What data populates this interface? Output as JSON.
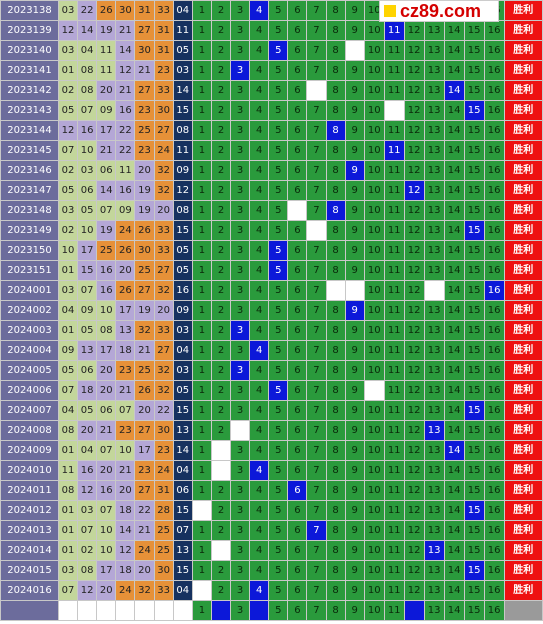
{
  "logo": {
    "text": "cz89.com",
    "icon": "yellow-square-icon"
  },
  "colors": {
    "green": "#c3d69b",
    "purple": "#b4a7d6",
    "orange": "#e69138",
    "blue_green": "#2a9a3c",
    "hit": "#0c18d9",
    "win": "#ee1111"
  },
  "win_label": "胜利",
  "rows": [
    {
      "p": "2023138",
      "r": [
        "03",
        "22",
        "26",
        "30",
        "31",
        "33"
      ],
      "s": "04",
      "b": "4"
    },
    {
      "p": "2023139",
      "r": [
        "12",
        "14",
        "19",
        "21",
        "27",
        "31"
      ],
      "s": "11",
      "b": "11"
    },
    {
      "p": "2023140",
      "r": [
        "03",
        "04",
        "11",
        "14",
        "30",
        "31"
      ],
      "s": "05",
      "b": "5"
    },
    {
      "p": "2023141",
      "r": [
        "01",
        "08",
        "11",
        "12",
        "21",
        "23"
      ],
      "s": "03",
      "b": "3"
    },
    {
      "p": "2023142",
      "r": [
        "02",
        "08",
        "20",
        "21",
        "27",
        "33"
      ],
      "s": "14",
      "b": "14"
    },
    {
      "p": "2023143",
      "r": [
        "05",
        "07",
        "09",
        "16",
        "23",
        "30"
      ],
      "s": "15",
      "b": "15"
    },
    {
      "p": "2023144",
      "r": [
        "12",
        "16",
        "17",
        "22",
        "25",
        "27"
      ],
      "s": "08",
      "b": "8"
    },
    {
      "p": "2023145",
      "r": [
        "07",
        "10",
        "21",
        "22",
        "23",
        "24"
      ],
      "s": "11",
      "b": "11"
    },
    {
      "p": "2023146",
      "r": [
        "02",
        "03",
        "06",
        "11",
        "20",
        "32"
      ],
      "s": "09",
      "b": "9"
    },
    {
      "p": "2023147",
      "r": [
        "05",
        "06",
        "14",
        "16",
        "19",
        "32"
      ],
      "s": "12",
      "b": "12"
    },
    {
      "p": "2023148",
      "r": [
        "03",
        "05",
        "07",
        "09",
        "19",
        "20"
      ],
      "s": "08",
      "b": "8"
    },
    {
      "p": "2023149",
      "r": [
        "02",
        "10",
        "19",
        "24",
        "26",
        "33"
      ],
      "s": "15",
      "b": "15"
    },
    {
      "p": "2023150",
      "r": [
        "10",
        "17",
        "25",
        "26",
        "30",
        "33"
      ],
      "s": "05",
      "b": "5"
    },
    {
      "p": "2023151",
      "r": [
        "01",
        "15",
        "16",
        "20",
        "25",
        "27"
      ],
      "s": "05",
      "b": "5"
    },
    {
      "p": "2024001",
      "r": [
        "03",
        "07",
        "16",
        "26",
        "27",
        "32"
      ],
      "s": "16",
      "b": "16"
    },
    {
      "p": "2024002",
      "r": [
        "04",
        "09",
        "10",
        "17",
        "19",
        "20"
      ],
      "s": "09",
      "b": "9"
    },
    {
      "p": "2024003",
      "r": [
        "01",
        "05",
        "08",
        "13",
        "32",
        "33"
      ],
      "s": "03",
      "b": "3"
    },
    {
      "p": "2024004",
      "r": [
        "09",
        "13",
        "17",
        "18",
        "21",
        "27"
      ],
      "s": "04",
      "b": "4"
    },
    {
      "p": "2024005",
      "r": [
        "05",
        "06",
        "20",
        "23",
        "25",
        "32"
      ],
      "s": "03",
      "b": "3"
    },
    {
      "p": "2024006",
      "r": [
        "07",
        "18",
        "20",
        "21",
        "26",
        "32"
      ],
      "s": "05",
      "b": "5"
    },
    {
      "p": "2024007",
      "r": [
        "04",
        "05",
        "06",
        "07",
        "20",
        "22"
      ],
      "s": "15",
      "b": "15"
    },
    {
      "p": "2024008",
      "r": [
        "08",
        "20",
        "21",
        "23",
        "27",
        "30"
      ],
      "s": "13",
      "b": "13"
    },
    {
      "p": "2024009",
      "r": [
        "01",
        "04",
        "07",
        "10",
        "17",
        "23"
      ],
      "s": "14",
      "b": "14"
    },
    {
      "p": "2024010",
      "r": [
        "11",
        "16",
        "20",
        "21",
        "23",
        "24"
      ],
      "s": "04",
      "b": "4"
    },
    {
      "p": "2024011",
      "r": [
        "08",
        "12",
        "16",
        "20",
        "27",
        "31"
      ],
      "s": "06",
      "b": "6"
    },
    {
      "p": "2024012",
      "r": [
        "01",
        "03",
        "07",
        "18",
        "22",
        "28"
      ],
      "s": "15",
      "b": "15"
    },
    {
      "p": "2024013",
      "r": [
        "01",
        "07",
        "10",
        "14",
        "21",
        "25"
      ],
      "s": "07",
      "b": "7"
    },
    {
      "p": "2024014",
      "r": [
        "01",
        "02",
        "10",
        "12",
        "24",
        "25"
      ],
      "s": "13",
      "b": "13"
    },
    {
      "p": "2024015",
      "r": [
        "03",
        "08",
        "17",
        "18",
        "20",
        "30"
      ],
      "s": "15",
      "b": "15"
    },
    {
      "p": "2024016",
      "r": [
        "07",
        "12",
        "20",
        "24",
        "32",
        "33"
      ],
      "s": "04",
      "b": "4"
    }
  ],
  "miss_cells": {
    "2023140": [
      9
    ],
    "2023142": [
      7
    ],
    "2023143": [
      11
    ],
    "2023148": [
      6
    ],
    "2023149": [
      7
    ],
    "2024001": [
      8,
      9,
      13
    ],
    "2024006": [
      10
    ],
    "2024008": [
      3
    ],
    "2024009": [
      2
    ],
    "2024010": [
      2
    ],
    "2024012": [
      1
    ],
    "2024014": [
      2
    ],
    "2024016": [
      1
    ]
  },
  "forecast": {
    "numbers": [
      "1",
      "",
      "3",
      "",
      "5",
      "6",
      "7",
      "8",
      "9",
      "10",
      "11",
      "",
      "13",
      "14",
      "15",
      "16"
    ],
    "hits": [
      2,
      4,
      12
    ],
    "blue_block_cols": [
      2,
      4,
      12
    ]
  }
}
